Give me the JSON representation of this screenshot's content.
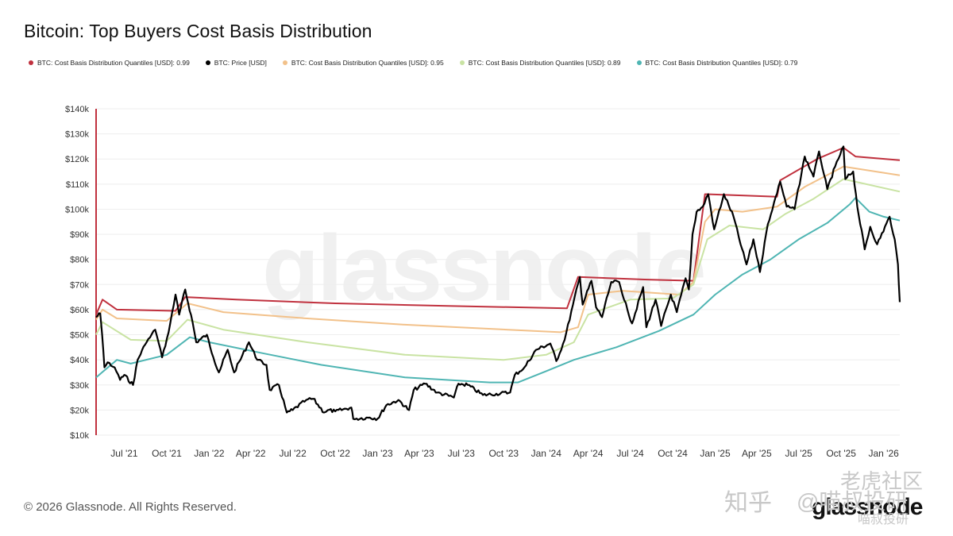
{
  "title": "Bitcoin: Top Buyers Cost Basis Distribution",
  "footer": "© 2026 Glassnode. All Rights Reserved.",
  "brand": "glassnode",
  "watermark": "glassnode",
  "overlay": {
    "zhihu": "知乎",
    "handle": "@喵叔投研",
    "cn1": "老虎社区",
    "cn2": "喵叔投研"
  },
  "colors": {
    "q099": "#c0313e",
    "price": "#000000",
    "q095": "#f2c18a",
    "q089": "#c9e3a3",
    "q079": "#4fb5b3",
    "grid": "#eeeeee",
    "axis": "#c0313e"
  },
  "legend": [
    {
      "label": "BTC: Cost Basis Distribution Quantiles [USD]: 0.99",
      "color": "#c0313e"
    },
    {
      "label": "BTC: Price [USD]",
      "color": "#000000"
    },
    {
      "label": "BTC: Cost Basis Distribution Quantiles [USD]: 0.95",
      "color": "#f2c18a"
    },
    {
      "label": "BTC: Cost Basis Distribution Quantiles [USD]: 0.89",
      "color": "#c9e3a3"
    },
    {
      "label": "BTC: Cost Basis Distribution Quantiles [USD]: 0.79",
      "color": "#4fb5b3"
    }
  ],
  "chart_data": {
    "type": "line",
    "title": "Bitcoin: Top Buyers Cost Basis Distribution",
    "xlabel": "",
    "ylabel": "",
    "ylim": [
      10000,
      140000
    ],
    "xlim": [
      "2021-05-01",
      "2026-02-05"
    ],
    "yticks": [
      10000,
      20000,
      30000,
      40000,
      50000,
      60000,
      70000,
      80000,
      90000,
      100000,
      110000,
      120000,
      130000,
      140000
    ],
    "ytick_labels": [
      "$10k",
      "$20k",
      "$30k",
      "$40k",
      "$50k",
      "$60k",
      "$70k",
      "$80k",
      "$90k",
      "$100k",
      "$110k",
      "$120k",
      "$130k",
      "$140k"
    ],
    "xticks": [
      "2021-07-01",
      "2021-10-01",
      "2022-01-01",
      "2022-04-01",
      "2022-07-01",
      "2022-10-01",
      "2023-01-01",
      "2023-04-01",
      "2023-07-01",
      "2023-10-01",
      "2024-01-01",
      "2024-04-01",
      "2024-07-01",
      "2024-10-01",
      "2025-01-01",
      "2025-04-01",
      "2025-07-01",
      "2025-10-01",
      "2026-01-01"
    ],
    "xtick_labels": [
      "Jul '21",
      "Oct '21",
      "Jan '22",
      "Apr '22",
      "Jul '22",
      "Oct '22",
      "Jan '23",
      "Apr '23",
      "Jul '23",
      "Oct '23",
      "Jan '24",
      "Apr '24",
      "Jul '24",
      "Oct '24",
      "Jan '25",
      "Apr '25",
      "Jul '25",
      "Oct '25",
      "Jan '26"
    ],
    "grid": true,
    "legend_position": "top",
    "series": [
      {
        "name": "BTC: Cost Basis Distribution Quantiles [USD]: 0.99",
        "key": "q099",
        "points": [
          [
            "2021-05-01",
            58000
          ],
          [
            "2021-05-15",
            64000
          ],
          [
            "2021-06-15",
            60000
          ],
          [
            "2021-10-20",
            59500
          ],
          [
            "2021-11-10",
            65000
          ],
          [
            "2022-03-01",
            64000
          ],
          [
            "2022-10-01",
            62500
          ],
          [
            "2023-06-01",
            61500
          ],
          [
            "2024-02-15",
            60500
          ],
          [
            "2024-03-10",
            73000
          ],
          [
            "2024-08-01",
            72000
          ],
          [
            "2024-11-15",
            71500
          ],
          [
            "2024-12-10",
            106000
          ],
          [
            "2025-05-15",
            105000
          ],
          [
            "2025-05-22",
            111500
          ],
          [
            "2025-08-10",
            120000
          ],
          [
            "2025-10-06",
            124500
          ],
          [
            "2025-11-01",
            121000
          ],
          [
            "2026-02-05",
            119500
          ]
        ]
      },
      {
        "name": "BTC: Cost Basis Distribution Quantiles [USD]: 0.95",
        "key": "q095",
        "points": [
          [
            "2021-05-01",
            56000
          ],
          [
            "2021-05-15",
            60000
          ],
          [
            "2021-06-15",
            56500
          ],
          [
            "2021-10-01",
            55500
          ],
          [
            "2021-11-15",
            62500
          ],
          [
            "2022-02-01",
            59000
          ],
          [
            "2022-08-01",
            56500
          ],
          [
            "2023-03-01",
            54000
          ],
          [
            "2024-02-01",
            51000
          ],
          [
            "2024-03-10",
            53000
          ],
          [
            "2024-04-01",
            66000
          ],
          [
            "2024-06-15",
            67500
          ],
          [
            "2024-10-15",
            66000
          ],
          [
            "2024-11-15",
            71000
          ],
          [
            "2024-12-10",
            95000
          ],
          [
            "2025-01-01",
            100000
          ],
          [
            "2025-03-01",
            99000
          ],
          [
            "2025-05-15",
            101000
          ],
          [
            "2025-07-15",
            109000
          ],
          [
            "2025-10-06",
            117000
          ],
          [
            "2026-02-05",
            113500
          ]
        ]
      },
      {
        "name": "BTC: Cost Basis Distribution Quantiles [USD]: 0.89",
        "key": "q089",
        "points": [
          [
            "2021-05-01",
            50000
          ],
          [
            "2021-05-15",
            55000
          ],
          [
            "2021-07-15",
            48000
          ],
          [
            "2021-10-01",
            47500
          ],
          [
            "2021-11-15",
            56000
          ],
          [
            "2022-02-01",
            52000
          ],
          [
            "2022-08-01",
            47000
          ],
          [
            "2023-03-01",
            42000
          ],
          [
            "2023-10-01",
            40000
          ],
          [
            "2024-01-01",
            42000
          ],
          [
            "2024-03-01",
            47000
          ],
          [
            "2024-04-01",
            58000
          ],
          [
            "2024-07-01",
            64000
          ],
          [
            "2024-10-01",
            64500
          ],
          [
            "2024-11-15",
            70000
          ],
          [
            "2024-12-15",
            88000
          ],
          [
            "2025-02-01",
            93500
          ],
          [
            "2025-04-15",
            92000
          ],
          [
            "2025-06-01",
            98000
          ],
          [
            "2025-08-01",
            104000
          ],
          [
            "2025-10-06",
            112000
          ],
          [
            "2026-02-05",
            107000
          ]
        ]
      },
      {
        "name": "BTC: Cost Basis Distribution Quantiles [USD]: 0.79",
        "key": "q079",
        "points": [
          [
            "2021-05-01",
            33000
          ],
          [
            "2021-06-15",
            40000
          ],
          [
            "2021-07-15",
            38500
          ],
          [
            "2021-10-01",
            42000
          ],
          [
            "2021-11-20",
            49000
          ],
          [
            "2022-01-01",
            47000
          ],
          [
            "2022-05-01",
            42500
          ],
          [
            "2022-09-01",
            38000
          ],
          [
            "2023-03-01",
            33000
          ],
          [
            "2023-09-01",
            31000
          ],
          [
            "2023-11-01",
            31000
          ],
          [
            "2024-01-01",
            35500
          ],
          [
            "2024-03-01",
            40000
          ],
          [
            "2024-06-01",
            45000
          ],
          [
            "2024-09-01",
            51500
          ],
          [
            "2024-11-15",
            58000
          ],
          [
            "2025-01-01",
            66000
          ],
          [
            "2025-03-01",
            74000
          ],
          [
            "2025-05-01",
            80000
          ],
          [
            "2025-07-01",
            88000
          ],
          [
            "2025-09-01",
            94500
          ],
          [
            "2025-10-20",
            102000
          ],
          [
            "2025-11-01",
            104500
          ],
          [
            "2025-12-01",
            99000
          ],
          [
            "2026-01-01",
            97000
          ],
          [
            "2026-02-05",
            95500
          ]
        ]
      },
      {
        "name": "BTC: Price [USD]",
        "key": "price",
        "points": [
          [
            "2021-05-01",
            57000
          ],
          [
            "2021-05-10",
            58500
          ],
          [
            "2021-05-14",
            50000
          ],
          [
            "2021-05-19",
            37000
          ],
          [
            "2021-05-26",
            39000
          ],
          [
            "2021-06-10",
            37000
          ],
          [
            "2021-06-22",
            32000
          ],
          [
            "2021-07-01",
            34000
          ],
          [
            "2021-07-20",
            30000
          ],
          [
            "2021-07-30",
            40000
          ],
          [
            "2021-08-15",
            46000
          ],
          [
            "2021-09-06",
            52000
          ],
          [
            "2021-09-21",
            41000
          ],
          [
            "2021-10-05",
            51000
          ],
          [
            "2021-10-20",
            66000
          ],
          [
            "2021-10-28",
            58000
          ],
          [
            "2021-11-10",
            68000
          ],
          [
            "2021-11-26",
            55000
          ],
          [
            "2021-12-04",
            47000
          ],
          [
            "2021-12-27",
            50000
          ],
          [
            "2022-01-10",
            41000
          ],
          [
            "2022-01-22",
            35000
          ],
          [
            "2022-02-10",
            44000
          ],
          [
            "2022-02-24",
            35000
          ],
          [
            "2022-03-28",
            47000
          ],
          [
            "2022-04-15",
            40000
          ],
          [
            "2022-05-05",
            38000
          ],
          [
            "2022-05-12",
            28000
          ],
          [
            "2022-06-01",
            30000
          ],
          [
            "2022-06-18",
            19000
          ],
          [
            "2022-07-01",
            20000
          ],
          [
            "2022-07-30",
            24000
          ],
          [
            "2022-08-14",
            24500
          ],
          [
            "2022-09-07",
            19000
          ],
          [
            "2022-09-15",
            20000
          ],
          [
            "2022-10-01",
            19500
          ],
          [
            "2022-11-05",
            21000
          ],
          [
            "2022-11-09",
            16500
          ],
          [
            "2022-12-15",
            17000
          ],
          [
            "2023-01-01",
            16600
          ],
          [
            "2023-01-20",
            22000
          ],
          [
            "2023-02-15",
            24000
          ],
          [
            "2023-03-10",
            20000
          ],
          [
            "2023-03-20",
            28000
          ],
          [
            "2023-04-14",
            30500
          ],
          [
            "2023-05-10",
            27000
          ],
          [
            "2023-06-15",
            25000
          ],
          [
            "2023-06-25",
            30500
          ],
          [
            "2023-07-15",
            30000
          ],
          [
            "2023-08-17",
            26000
          ],
          [
            "2023-09-15",
            26500
          ],
          [
            "2023-10-15",
            27000
          ],
          [
            "2023-10-25",
            34000
          ],
          [
            "2023-11-15",
            37000
          ],
          [
            "2023-12-10",
            44000
          ],
          [
            "2024-01-10",
            46500
          ],
          [
            "2024-01-23",
            39500
          ],
          [
            "2024-02-10",
            48000
          ],
          [
            "2024-02-28",
            62000
          ],
          [
            "2024-03-14",
            73000
          ],
          [
            "2024-03-20",
            62000
          ],
          [
            "2024-04-08",
            71500
          ],
          [
            "2024-04-18",
            61000
          ],
          [
            "2024-05-01",
            57000
          ],
          [
            "2024-05-21",
            71000
          ],
          [
            "2024-06-07",
            71000
          ],
          [
            "2024-06-25",
            60000
          ],
          [
            "2024-07-05",
            54500
          ],
          [
            "2024-07-29",
            69000
          ],
          [
            "2024-08-05",
            53000
          ],
          [
            "2024-08-25",
            64000
          ],
          [
            "2024-09-06",
            53500
          ],
          [
            "2024-09-27",
            66000
          ],
          [
            "2024-10-10",
            59000
          ],
          [
            "2024-10-29",
            72500
          ],
          [
            "2024-11-05",
            68000
          ],
          [
            "2024-11-13",
            90000
          ],
          [
            "2024-11-22",
            99000
          ],
          [
            "2024-12-05",
            101000
          ],
          [
            "2024-12-17",
            106000
          ],
          [
            "2024-12-30",
            92000
          ],
          [
            "2025-01-20",
            106000
          ],
          [
            "2025-02-10",
            97000
          ],
          [
            "2025-02-25",
            86000
          ],
          [
            "2025-03-10",
            78000
          ],
          [
            "2025-03-25",
            88000
          ],
          [
            "2025-04-08",
            75000
          ],
          [
            "2025-04-25",
            94000
          ],
          [
            "2025-05-22",
            111000
          ],
          [
            "2025-06-05",
            101000
          ],
          [
            "2025-06-22",
            100000
          ],
          [
            "2025-07-14",
            121000
          ],
          [
            "2025-08-02",
            113000
          ],
          [
            "2025-08-14",
            123000
          ],
          [
            "2025-09-01",
            108000
          ],
          [
            "2025-09-18",
            117000
          ],
          [
            "2025-10-06",
            125000
          ],
          [
            "2025-10-10",
            112000
          ],
          [
            "2025-10-27",
            115000
          ],
          [
            "2025-11-05",
            101000
          ],
          [
            "2025-11-21",
            84000
          ],
          [
            "2025-12-03",
            93000
          ],
          [
            "2025-12-18",
            86000
          ],
          [
            "2026-01-14",
            97000
          ],
          [
            "2026-01-25",
            88000
          ],
          [
            "2026-02-01",
            78000
          ],
          [
            "2026-02-05",
            63000
          ]
        ]
      }
    ]
  }
}
